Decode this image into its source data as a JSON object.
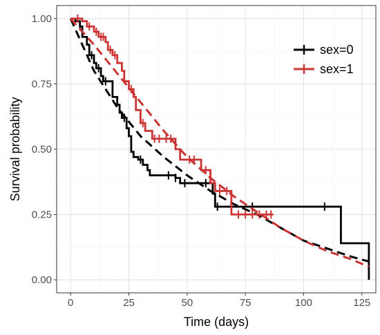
{
  "chart_data": {
    "type": "line",
    "xlabel": "Time (days)",
    "ylabel": "Survival probability",
    "xlim": [
      -6,
      131
    ],
    "ylim": [
      -0.05,
      1.05
    ],
    "x_ticks": [
      0,
      25,
      50,
      75,
      100,
      125
    ],
    "x_tick_labels": [
      "0",
      "25",
      "50",
      "75",
      "100",
      "125"
    ],
    "y_ticks": [
      0,
      0.25,
      0.5,
      0.75,
      1.0
    ],
    "y_tick_labels": [
      "0.00",
      "0.25",
      "0.50",
      "0.75",
      "1.00"
    ],
    "grid": true,
    "legend_position": "top-right",
    "series": [
      {
        "name": "sex=0",
        "color": "#000000",
        "km_steps": [
          [
            0,
            1.0
          ],
          [
            2,
            0.99
          ],
          [
            4,
            0.97
          ],
          [
            5,
            0.93
          ],
          [
            7,
            0.9
          ],
          [
            8,
            0.86
          ],
          [
            10,
            0.83
          ],
          [
            11,
            0.81
          ],
          [
            13,
            0.78
          ],
          [
            14,
            0.76
          ],
          [
            18,
            0.7
          ],
          [
            20,
            0.67
          ],
          [
            21,
            0.64
          ],
          [
            22,
            0.62
          ],
          [
            24,
            0.58
          ],
          [
            25,
            0.55
          ],
          [
            26,
            0.49
          ],
          [
            27,
            0.47
          ],
          [
            29,
            0.46
          ],
          [
            31,
            0.44
          ],
          [
            33,
            0.42
          ],
          [
            34,
            0.4
          ],
          [
            45,
            0.39
          ],
          [
            47,
            0.37
          ],
          [
            61,
            0.33
          ],
          [
            62,
            0.28
          ],
          [
            116,
            0.14
          ],
          [
            128,
            0.0
          ]
        ],
        "end_x": 128,
        "censor_x": [
          4,
          9,
          12,
          15,
          23,
          30,
          42,
          45,
          49,
          58,
          63,
          78,
          109
        ],
        "fitted": [
          [
            0,
            1.0
          ],
          [
            10,
            0.8
          ],
          [
            20,
            0.66
          ],
          [
            30,
            0.55
          ],
          [
            40,
            0.47
          ],
          [
            50,
            0.4
          ],
          [
            60,
            0.34
          ],
          [
            70,
            0.29
          ],
          [
            80,
            0.25
          ],
          [
            90,
            0.2
          ],
          [
            100,
            0.15
          ],
          [
            110,
            0.12
          ],
          [
            120,
            0.09
          ],
          [
            128,
            0.07
          ]
        ]
      },
      {
        "name": "sex=1",
        "color": "#cc3333",
        "km_steps": [
          [
            0,
            1.0
          ],
          [
            5,
            0.99
          ],
          [
            7,
            0.97
          ],
          [
            10,
            0.95
          ],
          [
            12,
            0.93
          ],
          [
            15,
            0.91
          ],
          [
            16,
            0.88
          ],
          [
            18,
            0.86
          ],
          [
            20,
            0.83
          ],
          [
            22,
            0.8
          ],
          [
            23,
            0.76
          ],
          [
            25,
            0.73
          ],
          [
            27,
            0.7
          ],
          [
            28,
            0.65
          ],
          [
            30,
            0.6
          ],
          [
            32,
            0.57
          ],
          [
            35,
            0.54
          ],
          [
            45,
            0.5
          ],
          [
            47,
            0.46
          ],
          [
            56,
            0.42
          ],
          [
            60,
            0.37
          ],
          [
            62,
            0.34
          ],
          [
            69,
            0.25
          ]
        ],
        "end_x": 87,
        "censor_x": [
          3,
          8,
          11,
          13,
          14,
          17,
          19,
          26,
          31,
          36,
          38,
          41,
          43,
          51,
          53,
          58,
          64,
          67,
          72,
          75,
          78,
          81,
          84,
          86
        ],
        "fitted": [
          [
            0,
            1.0
          ],
          [
            10,
            0.9
          ],
          [
            20,
            0.79
          ],
          [
            30,
            0.68
          ],
          [
            40,
            0.57
          ],
          [
            50,
            0.47
          ],
          [
            60,
            0.39
          ],
          [
            70,
            0.32
          ],
          [
            80,
            0.26
          ],
          [
            90,
            0.2
          ],
          [
            100,
            0.15
          ],
          [
            110,
            0.11
          ],
          [
            120,
            0.08
          ],
          [
            128,
            0.05
          ]
        ]
      }
    ]
  }
}
